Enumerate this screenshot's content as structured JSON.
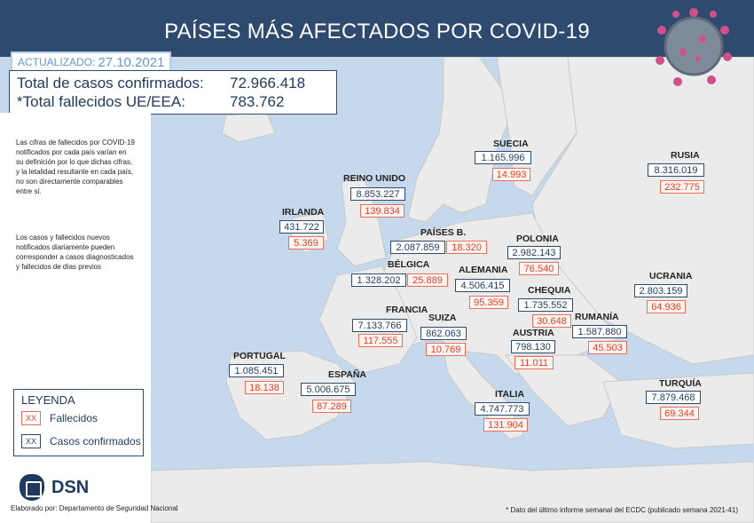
{
  "header": {
    "title": "PAÍSES MÁS AFECTADOS POR COVID-19"
  },
  "update": {
    "label": "ACTUALIZADO:",
    "date": "27.10.2021"
  },
  "totals": {
    "cases_label": "Total de casos confirmados:",
    "cases_value": "72.966.418",
    "deaths_label": "*Total fallecidos UE/EEA:",
    "deaths_value": "783.762"
  },
  "notes": {
    "note1": "Las cifras de fallecidos por COVID-19 notificados por cada país varían en su definición por lo que dichas cifras, y la letalidad resultante en cada país, no son directamente comparables entre sí.",
    "note2": "Los casos y fallecidos nuevos notificados diariamente pueden corresponder a casos diagnosticados y fallecidos de días previos"
  },
  "legend": {
    "title": "LEYENDA",
    "marker": "XX",
    "deaths": "Fallecidos",
    "cases": "Casos confirmados"
  },
  "countries": [
    {
      "name": "SUECIA",
      "cases": "1.165.996",
      "deaths": "14.993"
    },
    {
      "name": "RUSIA",
      "cases": "8.316.019",
      "deaths": "232.775"
    },
    {
      "name": "REINO UNIDO",
      "cases": "8.853.227",
      "deaths": "139.834"
    },
    {
      "name": "IRLANDA",
      "cases": "431.722",
      "deaths": "5.369"
    },
    {
      "name": "PAÍSES B.",
      "cases": "2.087.859",
      "deaths": "18.320"
    },
    {
      "name": "POLONIA",
      "cases": "2.982.143",
      "deaths": "76.540"
    },
    {
      "name": "BÉLGICA",
      "cases": "1.328.202",
      "deaths": "25.889"
    },
    {
      "name": "ALEMANIA",
      "cases": "4.506.415",
      "deaths": "95.359"
    },
    {
      "name": "UCRANIA",
      "cases": "2.803.159",
      "deaths": "64.936"
    },
    {
      "name": "CHEQUIA",
      "cases": "1.735.552",
      "deaths": "30.648"
    },
    {
      "name": "FRANCIA",
      "cases": "7.133.766",
      "deaths": "117.555"
    },
    {
      "name": "SUIZA",
      "cases": "862.063",
      "deaths": "10.769"
    },
    {
      "name": "RUMANÍA",
      "cases": "1.587.880",
      "deaths": "45.503"
    },
    {
      "name": "AUSTRIA",
      "cases": "798.130",
      "deaths": "11.011"
    },
    {
      "name": "PORTUGAL",
      "cases": "1.085.451",
      "deaths": "18.138"
    },
    {
      "name": "ESPAÑA",
      "cases": "5.006.675",
      "deaths": "87.289"
    },
    {
      "name": "TURQUÍA",
      "cases": "7.879.468",
      "deaths": "69.344"
    },
    {
      "name": "ITALIA",
      "cases": "4.747.773",
      "deaths": "131.904"
    }
  ],
  "branding": {
    "logo_text": "DSN",
    "credit": "Elaborado por: Departamento de Seguridad Nacional"
  },
  "footnote": "* Dato del último informe semanal del ECDC (publicado semana 2021-41)",
  "colors": {
    "header": "#2e4a6e",
    "land": "#ebebeb",
    "sea": "#c5d8ec",
    "deaths_red": "#e0402a",
    "cases_blue": "#1f3a5c",
    "accent": "#5f99d0"
  }
}
